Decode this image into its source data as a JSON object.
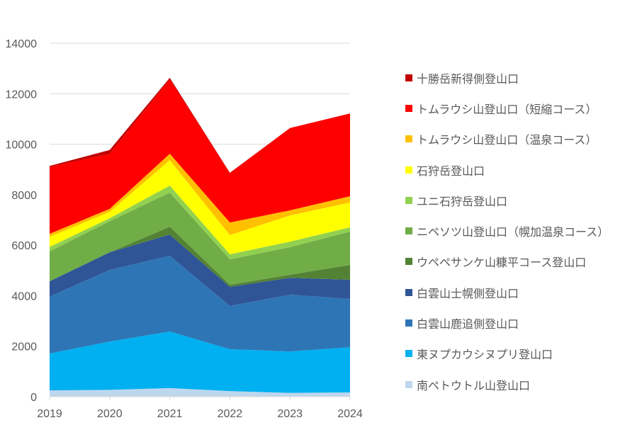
{
  "chart_data": {
    "type": "area",
    "stacked": true,
    "title": "",
    "xlabel": "",
    "ylabel": "",
    "x": [
      "2019",
      "2020",
      "2021",
      "2022",
      "2023",
      "2024"
    ],
    "ylim": [
      0,
      14000
    ],
    "yticks": [
      "0",
      "2000",
      "4000",
      "6000",
      "8000",
      "10000",
      "12000",
      "14000"
    ],
    "grid": true,
    "legend_position": "right",
    "series": [
      {
        "name": "南ペトウトル山登山口",
        "color": "#BDD7EE",
        "values": [
          250,
          270,
          340,
          220,
          150,
          170
        ]
      },
      {
        "name": "東ヌプカウシヌプリ登山口",
        "color": "#00B0F0",
        "values": [
          1460,
          1910,
          2240,
          1660,
          1640,
          1790
        ]
      },
      {
        "name": "白雲山鹿追側登山口",
        "color": "#2E75B6",
        "values": [
          2250,
          2840,
          3000,
          1710,
          2250,
          1910
        ]
      },
      {
        "name": "白雲山士幌側登山口",
        "color": "#2F5597",
        "values": [
          610,
          700,
          840,
          760,
          670,
          760
        ]
      },
      {
        "name": "ウペペサンケ山糠平コース登山口",
        "color": "#548235",
        "values": [
          0,
          0,
          310,
          80,
          120,
          590
        ]
      },
      {
        "name": "ニペソツ山登山口（幌加温泉コース）",
        "color": "#70AD47",
        "values": [
          1180,
          1230,
          1350,
          1010,
          1090,
          1320
        ]
      },
      {
        "name": "ユニ石狩岳登山口",
        "color": "#92D050",
        "values": [
          180,
          120,
          280,
          200,
          220,
          170
        ]
      },
      {
        "name": "石狩岳登山口",
        "color": "#FFFF00",
        "values": [
          400,
          250,
          1010,
          760,
          1040,
          980
        ]
      },
      {
        "name": "トムラウシ山登山口（温泉コース）",
        "color": "#FFC000",
        "values": [
          120,
          120,
          250,
          500,
          200,
          250
        ]
      },
      {
        "name": "トムラウシ山登山口（短縮コース）",
        "color": "#FF0000",
        "values": [
          2650,
          2180,
          2950,
          1950,
          3260,
          3280
        ]
      },
      {
        "name": "十勝岳新得側登山口",
        "color": "#C00000",
        "values": [
          40,
          150,
          60,
          20,
          0,
          0
        ]
      }
    ]
  }
}
